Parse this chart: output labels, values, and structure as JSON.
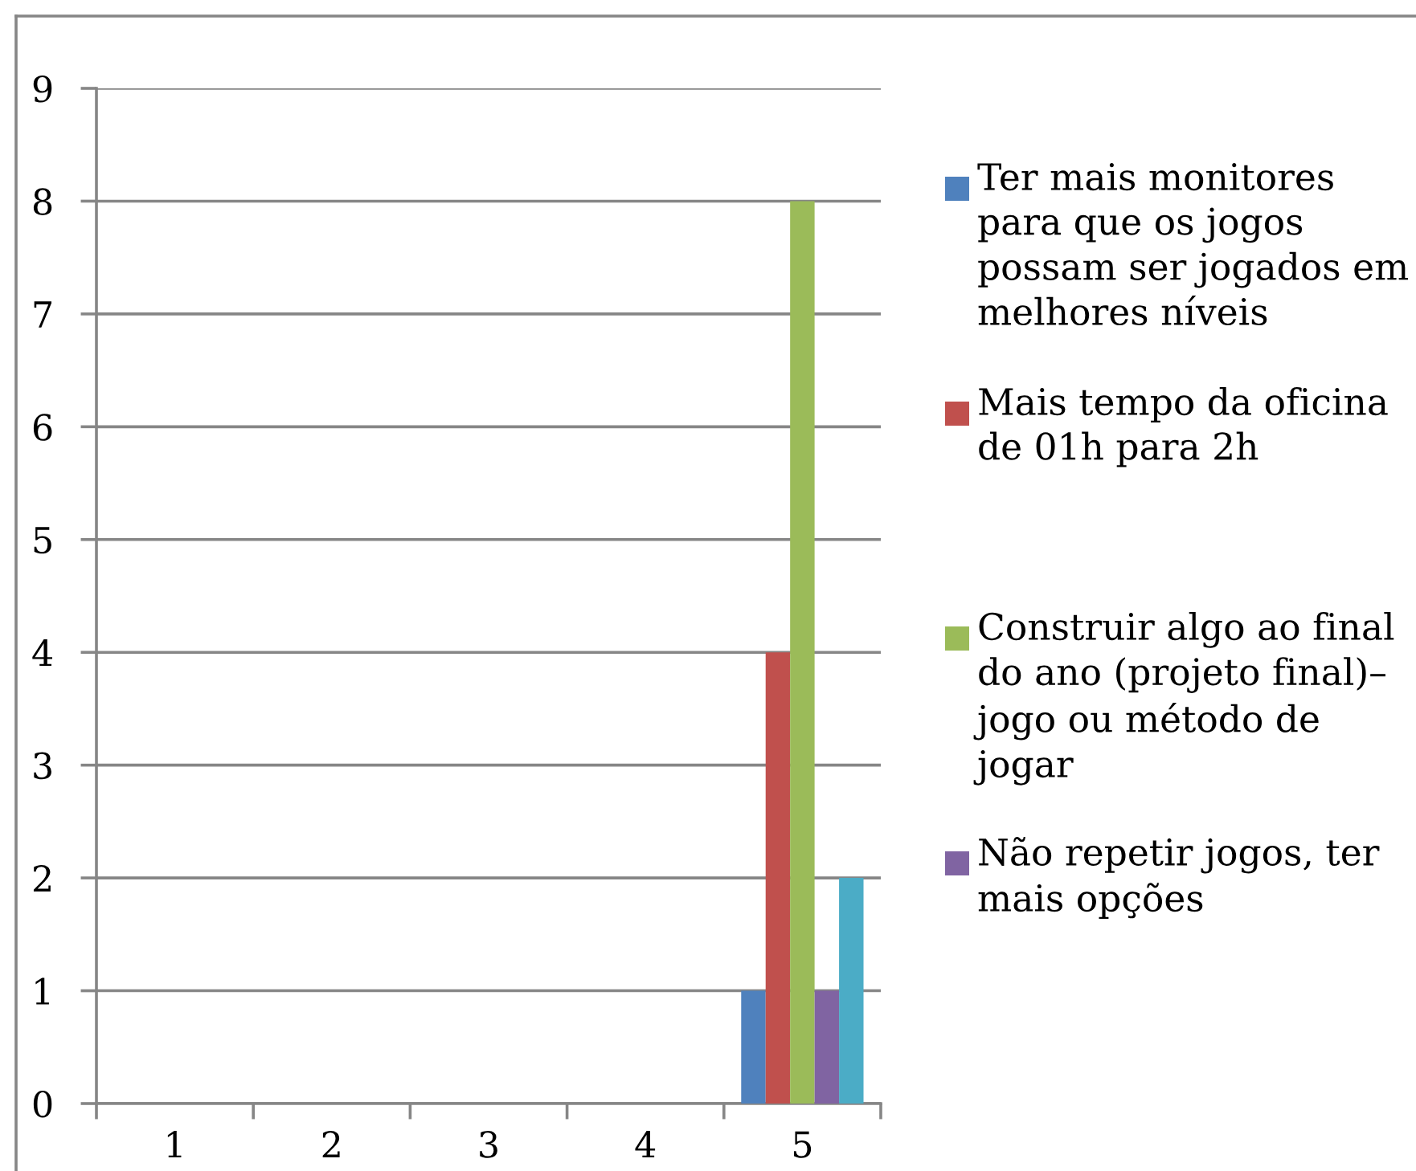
{
  "chart_data": {
    "type": "bar",
    "categories": [
      "1",
      "2",
      "3",
      "4",
      "5"
    ],
    "series": [
      {
        "name": "Ter mais monitores para que os jogos possam ser jogados em melhores níveis",
        "color": "#4f81bd",
        "values": [
          null,
          null,
          null,
          null,
          1
        ]
      },
      {
        "name": "Mais tempo da oficina de 01h para 2h",
        "color": "#c0504d",
        "values": [
          null,
          null,
          null,
          null,
          4
        ]
      },
      {
        "name": "Construir algo ao final do ano (projeto final)– jogo ou método de jogar",
        "color": "#9bbb59",
        "values": [
          null,
          null,
          null,
          null,
          8
        ]
      },
      {
        "name": "Não repetir jogos, ter mais opções",
        "color": "#8064a2",
        "values": [
          null,
          null,
          null,
          null,
          1
        ]
      },
      {
        "color": "#4bacc6",
        "values": [
          null,
          null,
          null,
          null,
          2
        ]
      }
    ],
    "ylim": [
      0,
      9
    ],
    "yticks": [
      0,
      1,
      2,
      3,
      4,
      5,
      6,
      7,
      8,
      9
    ],
    "grid": "y",
    "legend": "right"
  }
}
